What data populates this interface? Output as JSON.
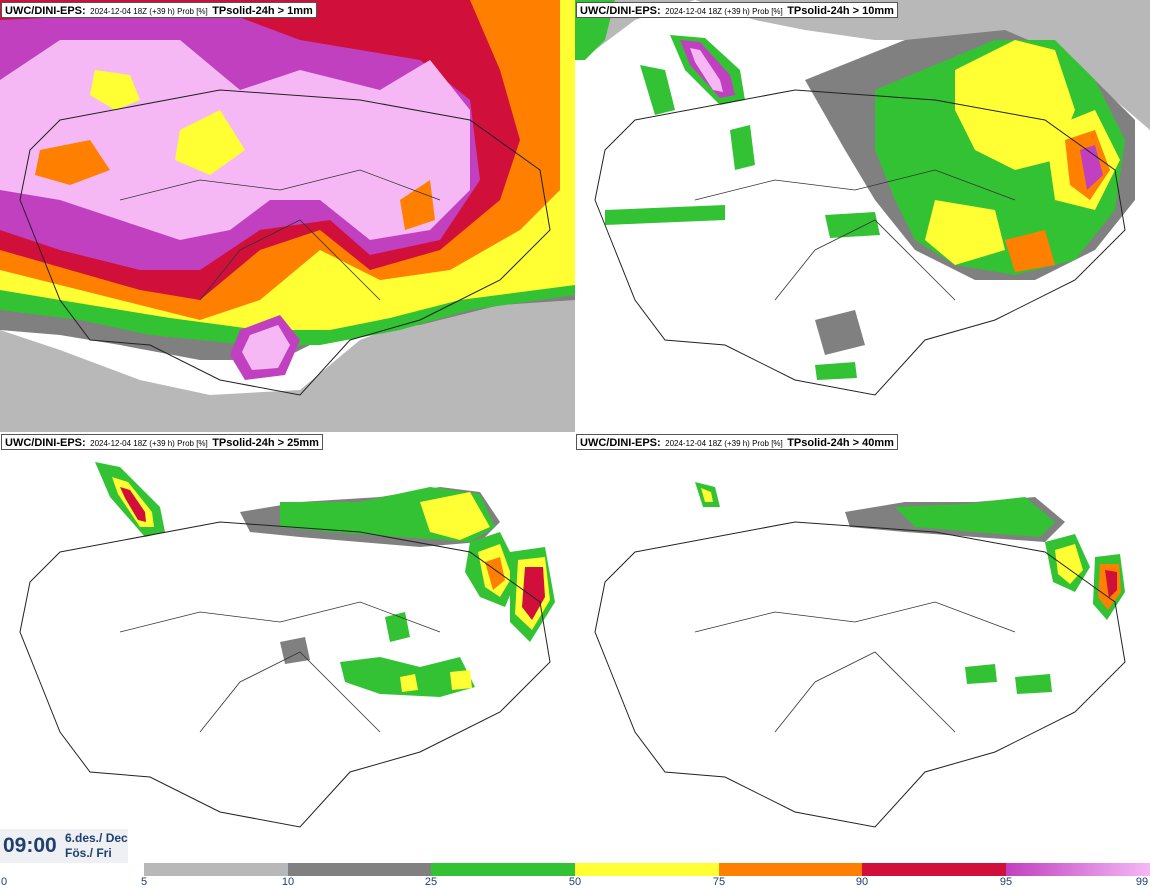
{
  "panels": [
    {
      "model": "UWC/DINI-EPS:",
      "run": "2024-12-04 18Z (+39 h) Prob [%]",
      "param": "TPsolid-24h > 1mm"
    },
    {
      "model": "UWC/DINI-EPS:",
      "run": "2024-12-04 18Z (+39 h) Prob [%]",
      "param": "TPsolid-24h > 10mm"
    },
    {
      "model": "UWC/DINI-EPS:",
      "run": "2024-12-04 18Z (+39 h) Prob [%]",
      "param": "TPsolid-24h > 25mm"
    },
    {
      "model": "UWC/DINI-EPS:",
      "run": "2024-12-04 18Z (+39 h) Prob [%]",
      "param": "TPsolid-24h > 40mm"
    }
  ],
  "time": {
    "clock": "09:00",
    "date": "6.des./ Dec",
    "day": "Fös./ Fri"
  },
  "legend": {
    "unit": "Prob [%]",
    "ticks": [
      "0",
      "5",
      "10",
      "25",
      "50",
      "75",
      "90",
      "95",
      "99"
    ],
    "colors": [
      "#ffffff",
      "#b8b8b8",
      "#808080",
      "#33c233",
      "#ffff33",
      "#ff7f00",
      "#d0103a",
      "#c040c0",
      "#f5b8f5"
    ]
  },
  "map_colors": {
    "coast": "#222222",
    "roads": "#333333",
    "background": "#ffffff"
  }
}
